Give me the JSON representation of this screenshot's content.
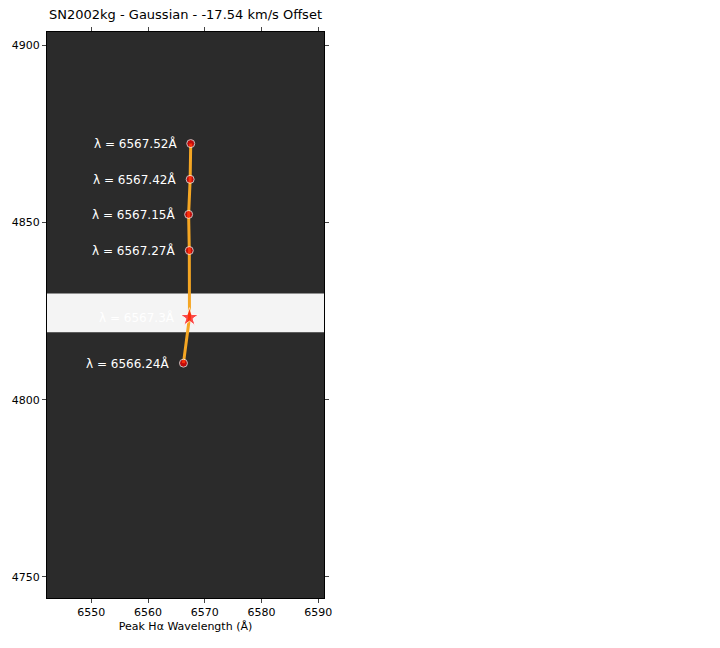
{
  "chart_data": {
    "type": "scatter",
    "title": "SN2002kg - Gaussian - -17.54 km/s Offset",
    "x_label": "Peak Hα Wavelength (Å)",
    "xlim": [
      6542.2,
      6591.0
    ],
    "ylim": [
      4744.0,
      4903.8
    ],
    "xticks": [
      6550,
      6560,
      6570,
      6580,
      6590
    ],
    "yticks": [
      4750,
      4800,
      4850,
      4900
    ],
    "line_color": "#f5a623",
    "color": "#ff0000",
    "continuum": [
      4819,
      4830
    ],
    "points": [
      {
        "x": 6567.52,
        "y": 4872.3,
        "label": "λ = 6567.52Å",
        "marker": "circle"
      },
      {
        "x": 6567.42,
        "y": 4862.2,
        "label": "λ = 6567.42Å",
        "marker": "circle"
      },
      {
        "x": 6567.15,
        "y": 4852.3,
        "label": "λ = 6567.15Å",
        "marker": "circle"
      },
      {
        "x": 6567.27,
        "y": 4842.1,
        "label": "λ = 6567.27Å",
        "marker": "circle"
      },
      {
        "x": 6567.3,
        "y": 4823.2,
        "label": "λ = 6567.3Å",
        "marker": "star"
      },
      {
        "x": 6566.24,
        "y": 4810.3,
        "label": "λ = 6566.24Å",
        "marker": "circle"
      }
    ]
  }
}
